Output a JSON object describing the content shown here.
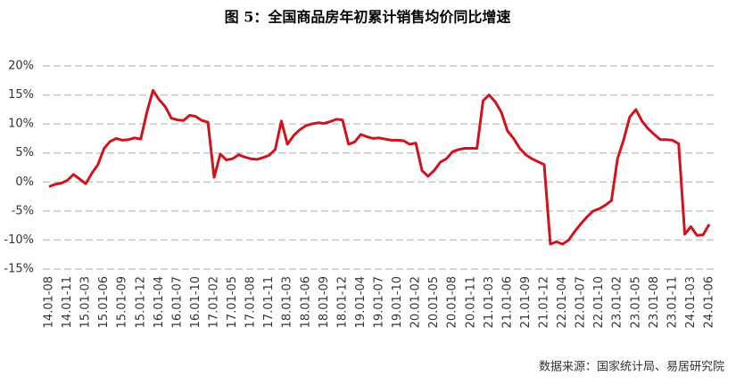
{
  "chart_data": {
    "type": "line",
    "title": "图 5：全国商品房年初累计销售均价同比增速",
    "source": "数据来源：国家统计局、易居研究院",
    "categories": [
      "14.01-08",
      null,
      null,
      "14.01-11",
      null,
      null,
      "15.01-03",
      null,
      null,
      "15.01-06",
      null,
      null,
      "15.01-09",
      null,
      null,
      "15.01-12",
      null,
      null,
      "16.01-04",
      null,
      null,
      "16.01-07",
      null,
      null,
      "16.01-10",
      null,
      null,
      "17.01-02",
      null,
      null,
      "17.01-05",
      null,
      null,
      "17.01-08",
      null,
      null,
      "17.01-11",
      null,
      null,
      "18.01-03",
      null,
      null,
      "18.01-06",
      null,
      null,
      "18.01-09",
      null,
      null,
      "18.01-12",
      null,
      null,
      "19.01-04",
      null,
      null,
      "19.01-07",
      null,
      null,
      "19.01-10",
      null,
      null,
      "20.01-02",
      null,
      null,
      "20.01-05",
      null,
      null,
      "20.01-08",
      null,
      null,
      "20.01-11",
      null,
      null,
      "21.01-03",
      null,
      null,
      "21.01-06",
      null,
      null,
      "21.01-09",
      null,
      null,
      "21.01-12",
      null,
      null,
      "22.01-04",
      null,
      null,
      "22.01-07",
      null,
      null,
      "22.01-10",
      null,
      null,
      "23.01-02",
      null,
      null,
      "23.01-05",
      null,
      null,
      "23.01-08",
      null,
      null,
      "23.01-11",
      null,
      null,
      "24.01-03",
      null,
      null,
      "24.01-06"
    ],
    "series": [
      {
        "color": "#d0141e",
        "values": [
          -0.8,
          -0.4,
          -0.2,
          0.3,
          1.3,
          0.5,
          -0.3,
          1.5,
          3.0,
          5.8,
          7.0,
          7.5,
          7.2,
          7.3,
          7.6,
          7.4,
          12.0,
          15.8,
          14.2,
          13.0,
          11.0,
          10.7,
          10.6,
          11.5,
          11.3,
          10.6,
          10.3,
          0.8,
          4.8,
          3.8,
          4.0,
          4.7,
          4.3,
          4.0,
          3.9,
          4.2,
          4.6,
          5.6,
          10.5,
          6.5,
          8.0,
          9.0,
          9.7,
          10.0,
          10.2,
          10.1,
          10.4,
          10.8,
          10.7,
          6.5,
          6.9,
          8.2,
          7.8,
          7.5,
          7.6,
          7.4,
          7.2,
          7.2,
          7.1,
          6.5,
          6.7,
          2.0,
          1.0,
          2.0,
          3.4,
          4.0,
          5.2,
          5.6,
          5.8,
          5.8,
          5.8,
          14.0,
          15.0,
          13.8,
          12.0,
          8.8,
          7.5,
          5.8,
          4.7,
          4.0,
          3.5,
          3.0,
          -10.7,
          -10.3,
          -10.7,
          -10.0,
          -8.5,
          -7.2,
          -6.0,
          -5.0,
          -4.6,
          -4.0,
          -3.2,
          4.0,
          7.3,
          11.2,
          12.5,
          10.5,
          9.2,
          8.2,
          7.3,
          7.3,
          7.2,
          6.6,
          -9.0,
          -7.7,
          -9.2,
          -9.1,
          -7.3
        ]
      }
    ],
    "ylim": [
      -15,
      20
    ],
    "yticks": [
      {
        "value": -15,
        "label": "-15%"
      },
      {
        "value": -10,
        "label": "-10%"
      },
      {
        "value": -5,
        "label": "-5%"
      },
      {
        "value": 0,
        "label": "0%"
      },
      {
        "value": 5,
        "label": "5%"
      },
      {
        "value": 10,
        "label": "10%"
      },
      {
        "value": 15,
        "label": "15%"
      },
      {
        "value": 20,
        "label": "20%"
      }
    ],
    "grid": true
  }
}
